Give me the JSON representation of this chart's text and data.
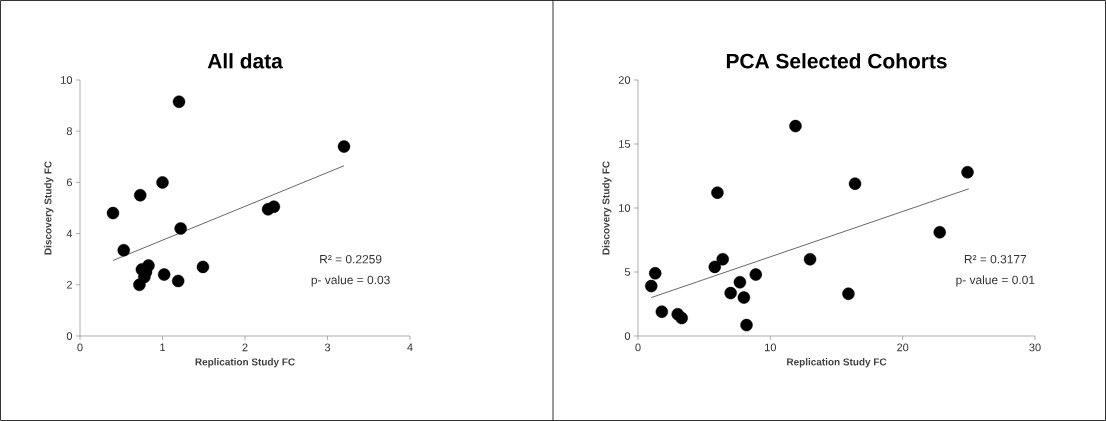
{
  "chart_data": [
    {
      "type": "scatter",
      "title": "All data",
      "xlabel": "Replication Study FC",
      "ylabel": "Discovery Study FC",
      "xlim": [
        0,
        4
      ],
      "ylim": [
        0,
        10
      ],
      "xticks": [
        0,
        1,
        2,
        3,
        4
      ],
      "yticks": [
        0,
        2,
        4,
        6,
        8,
        10
      ],
      "series": [
        {
          "marker": "circle",
          "color": "#000000",
          "x": [
            0.4,
            0.53,
            0.73,
            0.72,
            0.75,
            0.78,
            0.8,
            0.83,
            1.0,
            1.02,
            1.2,
            1.22,
            1.19,
            1.49,
            2.28,
            2.35,
            3.2
          ],
          "values": [
            4.8,
            3.35,
            5.5,
            2.0,
            2.6,
            2.3,
            2.5,
            2.75,
            6.0,
            2.4,
            9.15,
            4.2,
            2.15,
            2.7,
            4.95,
            5.05,
            7.4
          ]
        },
        {
          "type": "line",
          "marker": "none",
          "color": "#000000",
          "x": [
            0.4,
            3.2
          ],
          "values": [
            2.95,
            6.65
          ]
        }
      ],
      "annotations": [
        "R² = 0.2259",
        "p- value = 0.03"
      ]
    },
    {
      "type": "scatter",
      "title": "PCA Selected Cohorts",
      "xlabel": "Replication Study FC",
      "ylabel": "Discovery Study FC",
      "xlim": [
        0,
        30
      ],
      "ylim": [
        0,
        20
      ],
      "xticks": [
        0,
        10,
        20,
        30
      ],
      "yticks": [
        0,
        5,
        10,
        15,
        20
      ],
      "series": [
        {
          "marker": "circle",
          "color": "#000000",
          "x": [
            1,
            1.3,
            1.8,
            3,
            3.3,
            5.8,
            6,
            6.4,
            7,
            7.7,
            8,
            8.2,
            8.9,
            11.9,
            13,
            15.9,
            16.4,
            22.8,
            24.9
          ],
          "values": [
            3.9,
            4.9,
            1.9,
            1.7,
            1.4,
            5.4,
            11.2,
            6.0,
            3.35,
            4.2,
            3.0,
            0.85,
            4.8,
            16.4,
            6.0,
            3.3,
            11.9,
            8.1,
            12.8
          ]
        },
        {
          "type": "line",
          "marker": "none",
          "color": "#000000",
          "x": [
            1,
            25
          ],
          "values": [
            3.0,
            11.5
          ]
        }
      ],
      "annotations": [
        "R² = 0.3177",
        "p- value = 0.01"
      ]
    }
  ]
}
